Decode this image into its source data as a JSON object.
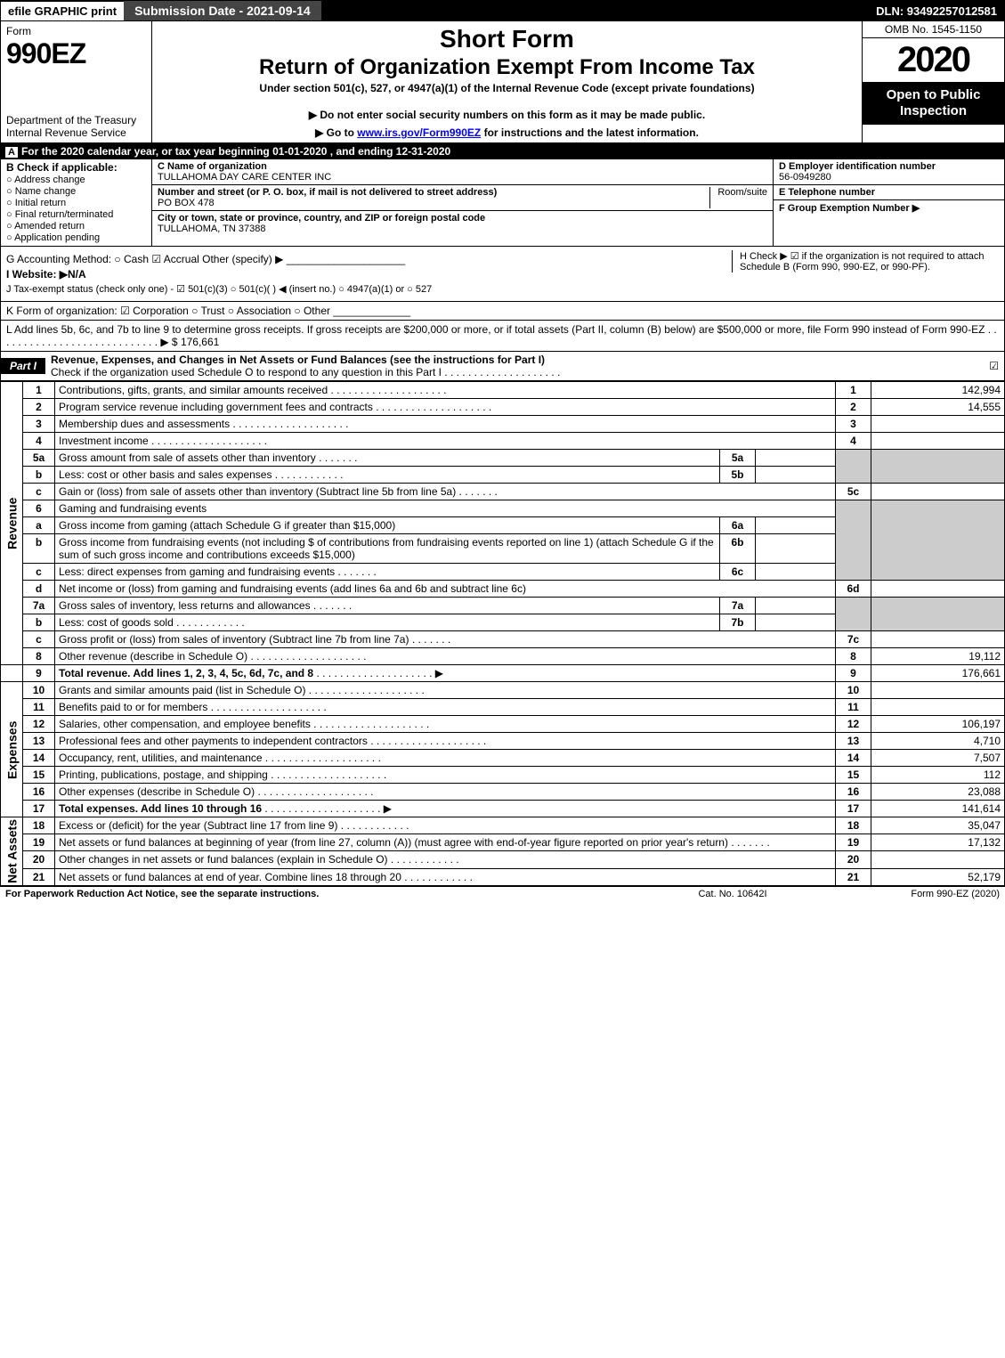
{
  "topbar": {
    "efile": "efile GRAPHIC print",
    "submission": "Submission Date - 2021-09-14",
    "dln": "DLN: 93492257012581"
  },
  "header": {
    "form_label": "Form",
    "form_number": "990EZ",
    "dept1": "Department of the Treasury",
    "dept2": "Internal Revenue Service",
    "short_form": "Short Form",
    "return_title": "Return of Organization Exempt From Income Tax",
    "under": "Under section 501(c), 527, or 4947(a)(1) of the Internal Revenue Code (except private foundations)",
    "warn1": "▶ Do not enter social security numbers on this form as it may be made public.",
    "warn2_pre": "▶ Go to ",
    "warn2_link": "www.irs.gov/Form990EZ",
    "warn2_post": " for instructions and the latest information.",
    "omb": "OMB No. 1545-1150",
    "year": "2020",
    "open": "Open to Public Inspection"
  },
  "lineA": "For the 2020 calendar year, or tax year beginning 01-01-2020 , and ending 12-31-2020",
  "boxB": {
    "title": "B  Check if applicable:",
    "items": [
      "Address change",
      "Name change",
      "Initial return",
      "Final return/terminated",
      "Amended return",
      "Application pending"
    ]
  },
  "boxC": {
    "name_lbl": "C Name of organization",
    "name": "TULLAHOMA DAY CARE CENTER INC",
    "street_lbl": "Number and street (or P. O. box, if mail is not delivered to street address)",
    "room_lbl": "Room/suite",
    "street": "PO BOX 478",
    "city_lbl": "City or town, state or province, country, and ZIP or foreign postal code",
    "city": "TULLAHOMA, TN  37388"
  },
  "boxDE": {
    "d_lbl": "D Employer identification number",
    "d_val": "56-0949280",
    "e_lbl": "E Telephone number",
    "e_val": "",
    "f_lbl": "F Group Exemption Number  ▶",
    "f_val": ""
  },
  "rowG": "G Accounting Method:   ○ Cash   ☑ Accrual   Other (specify) ▶ ____________________",
  "rowH": "H  Check ▶  ☑  if the organization is not required to attach Schedule B (Form 990, 990-EZ, or 990-PF).",
  "rowI": "I Website: ▶N/A",
  "rowJ": "J Tax-exempt status (check only one) - ☑ 501(c)(3)  ○ 501(c)(  ) ◀ (insert no.)  ○ 4947(a)(1) or  ○ 527",
  "rowK": "K Form of organization:   ☑ Corporation   ○ Trust   ○ Association   ○ Other  _____________",
  "rowL": "L Add lines 5b, 6c, and 7b to line 9 to determine gross receipts. If gross receipts are $200,000 or more, or if total assets (Part II, column (B) below) are $500,000 or more, file Form 990 instead of Form 990-EZ  .  .  .  .  .  .  .  .  .  .  .  .  .  .  .  .  .  .  .  .  .  .  .  .  .  .  .  .  ▶ $ 176,661",
  "part1": {
    "label": "Part I",
    "title": "Revenue, Expenses, and Changes in Net Assets or Fund Balances (see the instructions for Part I)",
    "check": "Check if the organization used Schedule O to respond to any question in this Part I"
  },
  "sections": {
    "revenue": "Revenue",
    "expenses": "Expenses",
    "netassets": "Net Assets"
  },
  "lines": {
    "l1": {
      "n": "1",
      "d": "Contributions, gifts, grants, and similar amounts received",
      "box": "1",
      "v": "142,994"
    },
    "l2": {
      "n": "2",
      "d": "Program service revenue including government fees and contracts",
      "box": "2",
      "v": "14,555"
    },
    "l3": {
      "n": "3",
      "d": "Membership dues and assessments",
      "box": "3",
      "v": ""
    },
    "l4": {
      "n": "4",
      "d": "Investment income",
      "box": "4",
      "v": ""
    },
    "l5a": {
      "n": "5a",
      "d": "Gross amount from sale of assets other than inventory",
      "sb": "5a"
    },
    "l5b": {
      "n": "b",
      "d": "Less: cost or other basis and sales expenses",
      "sb": "5b"
    },
    "l5c": {
      "n": "c",
      "d": "Gain or (loss) from sale of assets other than inventory (Subtract line 5b from line 5a)",
      "box": "5c",
      "v": ""
    },
    "l6": {
      "n": "6",
      "d": "Gaming and fundraising events"
    },
    "l6a": {
      "n": "a",
      "d": "Gross income from gaming (attach Schedule G if greater than $15,000)",
      "sb": "6a"
    },
    "l6b": {
      "n": "b",
      "d": "Gross income from fundraising events (not including $                  of contributions from fundraising events reported on line 1) (attach Schedule G if the sum of such gross income and contributions exceeds $15,000)",
      "sb": "6b"
    },
    "l6c": {
      "n": "c",
      "d": "Less: direct expenses from gaming and fundraising events",
      "sb": "6c"
    },
    "l6d": {
      "n": "d",
      "d": "Net income or (loss) from gaming and fundraising events (add lines 6a and 6b and subtract line 6c)",
      "box": "6d",
      "v": ""
    },
    "l7a": {
      "n": "7a",
      "d": "Gross sales of inventory, less returns and allowances",
      "sb": "7a"
    },
    "l7b": {
      "n": "b",
      "d": "Less: cost of goods sold",
      "sb": "7b"
    },
    "l7c": {
      "n": "c",
      "d": "Gross profit or (loss) from sales of inventory (Subtract line 7b from line 7a)",
      "box": "7c",
      "v": ""
    },
    "l8": {
      "n": "8",
      "d": "Other revenue (describe in Schedule O)",
      "box": "8",
      "v": "19,112"
    },
    "l9": {
      "n": "9",
      "d": "Total revenue. Add lines 1, 2, 3, 4, 5c, 6d, 7c, and 8",
      "box": "9",
      "v": "176,661"
    },
    "l10": {
      "n": "10",
      "d": "Grants and similar amounts paid (list in Schedule O)",
      "box": "10",
      "v": ""
    },
    "l11": {
      "n": "11",
      "d": "Benefits paid to or for members",
      "box": "11",
      "v": ""
    },
    "l12": {
      "n": "12",
      "d": "Salaries, other compensation, and employee benefits",
      "box": "12",
      "v": "106,197"
    },
    "l13": {
      "n": "13",
      "d": "Professional fees and other payments to independent contractors",
      "box": "13",
      "v": "4,710"
    },
    "l14": {
      "n": "14",
      "d": "Occupancy, rent, utilities, and maintenance",
      "box": "14",
      "v": "7,507"
    },
    "l15": {
      "n": "15",
      "d": "Printing, publications, postage, and shipping",
      "box": "15",
      "v": "112"
    },
    "l16": {
      "n": "16",
      "d": "Other expenses (describe in Schedule O)",
      "box": "16",
      "v": "23,088"
    },
    "l17": {
      "n": "17",
      "d": "Total expenses. Add lines 10 through 16",
      "box": "17",
      "v": "141,614"
    },
    "l18": {
      "n": "18",
      "d": "Excess or (deficit) for the year (Subtract line 17 from line 9)",
      "box": "18",
      "v": "35,047"
    },
    "l19": {
      "n": "19",
      "d": "Net assets or fund balances at beginning of year (from line 27, column (A)) (must agree with end-of-year figure reported on prior year's return)",
      "box": "19",
      "v": "17,132"
    },
    "l20": {
      "n": "20",
      "d": "Other changes in net assets or fund balances (explain in Schedule O)",
      "box": "20",
      "v": ""
    },
    "l21": {
      "n": "21",
      "d": "Net assets or fund balances at end of year. Combine lines 18 through 20",
      "box": "21",
      "v": "52,179"
    }
  },
  "footer": {
    "f1": "For Paperwork Reduction Act Notice, see the separate instructions.",
    "f2": "Cat. No. 10642I",
    "f3": "Form 990-EZ (2020)"
  }
}
